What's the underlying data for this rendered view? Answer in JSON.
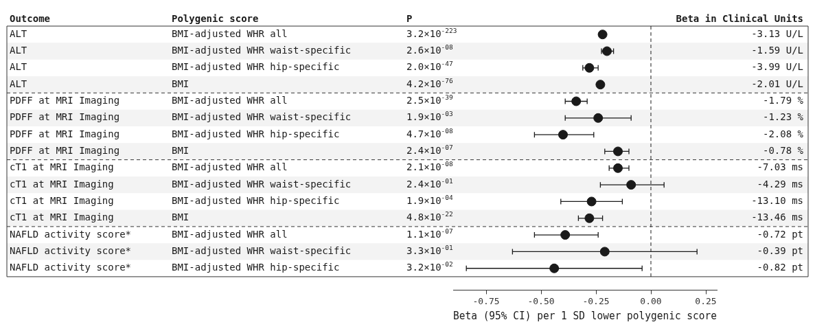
{
  "chart_data": {
    "type": "scatter",
    "orientation": "horizontal",
    "xlabel": "Beta (95% CI) per 1 SD lower polygenic score",
    "categories": [
      null,
      null,
      null,
      null,
      null,
      null,
      null,
      null,
      null,
      null,
      null,
      null,
      null,
      null,
      null
    ],
    "values": [
      -0.22,
      -0.2,
      -0.28,
      -0.23,
      -0.34,
      -0.24,
      -0.4,
      -0.15,
      -0.15,
      -0.09,
      -0.27,
      -0.28,
      -0.39,
      -0.21,
      -0.44
    ],
    "errors": [
      null,
      [
        -0.225,
        -0.17
      ],
      [
        -0.31,
        -0.24
      ],
      null,
      [
        -0.39,
        -0.29
      ],
      [
        -0.39,
        -0.09
      ],
      [
        -0.53,
        -0.26
      ],
      [
        -0.21,
        -0.1
      ],
      [
        -0.19,
        -0.1
      ],
      [
        -0.23,
        0.06
      ],
      [
        -0.41,
        -0.13
      ],
      [
        -0.33,
        -0.22
      ],
      [
        -0.53,
        -0.24
      ],
      [
        -0.63,
        0.21
      ],
      [
        -0.84,
        -0.04
      ]
    ],
    "annotations": [
      "Outcome",
      "Polygenic score",
      "P",
      "Beta in Clinical Units",
      "ALT",
      "BMI-adjusted WHR all",
      "3.2×10$^{-223}$",
      "-3.13 U/L",
      "ALT",
      "BMI-adjusted WHR waist-specific",
      "2.6×10$^{-08}$",
      "-1.59 U/L",
      "ALT",
      "BMI-adjusted WHR hip-specific",
      "2.0×10$^{-47}$",
      "-3.99 U/L",
      "ALT",
      "BMI",
      "4.2×10$^{-76}$",
      "-2.01 U/L",
      "PDFF at MRI Imaging",
      "BMI-adjusted WHR all",
      "2.5×10$^{-39}$",
      "-1.79 %",
      "PDFF at MRI Imaging",
      "BMI-adjusted WHR waist-specific",
      "1.9×10$^{-03}$",
      "-1.23 %",
      "PDFF at MRI Imaging",
      "BMI-adjusted WHR hip-specific",
      "4.7×10$^{-08}$",
      "-2.08 %",
      "PDFF at MRI Imaging",
      "BMI",
      "2.4×10$^{-07}$",
      "-0.78 %",
      "cT1 at MRI Imaging",
      "BMI-adjusted WHR all",
      "2.1×10$^{-08}$",
      "-7.03 ms",
      "cT1 at MRI Imaging",
      "BMI-adjusted WHR waist-specific",
      "2.4×10$^{-01}$",
      "-4.29 ms",
      "cT1 at MRI Imaging",
      "BMI-adjusted WHR hip-specific",
      "1.9×10$^{-04}$",
      "-13.10 ms",
      "cT1 at MRI Imaging",
      "BMI",
      "4.8×10$^{-22}$",
      "-13.46 ms",
      "NAFLD activity score*",
      "BMI-adjusted WHR all",
      "1.1×10$^{-07}$",
      "-0.72 pt",
      "NAFLD activity score*",
      "BMI-adjusted WHR waist-specific",
      "3.3×10$^{-01}$",
      "-0.39 pt",
      "NAFLD activity score*",
      "BMI-adjusted WHR hip-specific",
      "3.2×10$^{-02}$",
      "-0.82 pt"
    ],
    "color": "#1a1a1a",
    "marker": "circle",
    "xlim": [
      -0.9,
      0.3
    ],
    "xticks": [
      {
        "value": -0.75,
        "label": "-0.75"
      },
      {
        "value": -0.5,
        "label": "-0.50"
      },
      {
        "value": -0.25,
        "label": "-0.25"
      },
      {
        "value": 0,
        "label": "0.00"
      },
      {
        "value": 0.25,
        "label": "0.25"
      }
    ],
    "ref_lines": [
      {
        "axis": "x",
        "value": 0,
        "line_style": "dashed",
        "color": "#1a1a1a"
      }
    ]
  }
}
